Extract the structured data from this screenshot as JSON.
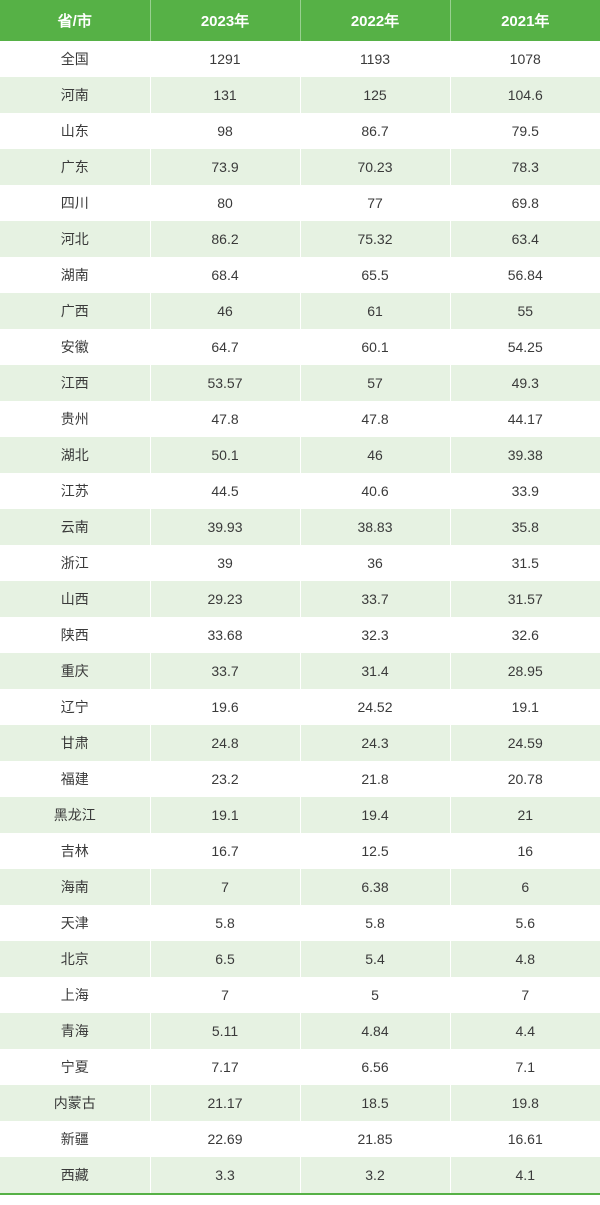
{
  "table": {
    "type": "table",
    "header_bg": "#56b146",
    "header_text_color": "#ffffff",
    "row_odd_bg": "#ffffff",
    "row_even_bg": "#e6f2e2",
    "body_text_color": "#3a3a3a",
    "bottom_border_color": "#56b146",
    "header_fontsize": 15,
    "body_fontsize": 14,
    "column_widths_pct": [
      25,
      25,
      25,
      25
    ],
    "columns": [
      "省/市",
      "2023年",
      "2022年",
      "2021年"
    ],
    "rows": [
      [
        "全国",
        "1291",
        "1193",
        "1078"
      ],
      [
        "河南",
        "131",
        "125",
        "104.6"
      ],
      [
        "山东",
        "98",
        "86.7",
        "79.5"
      ],
      [
        "广东",
        "73.9",
        "70.23",
        "78.3"
      ],
      [
        "四川",
        "80",
        "77",
        "69.8"
      ],
      [
        "河北",
        "86.2",
        "75.32",
        "63.4"
      ],
      [
        "湖南",
        "68.4",
        "65.5",
        "56.84"
      ],
      [
        "广西",
        "46",
        "61",
        "55"
      ],
      [
        "安徽",
        "64.7",
        "60.1",
        "54.25"
      ],
      [
        "江西",
        "53.57",
        "57",
        "49.3"
      ],
      [
        "贵州",
        "47.8",
        "47.8",
        "44.17"
      ],
      [
        "湖北",
        "50.1",
        "46",
        "39.38"
      ],
      [
        "江苏",
        "44.5",
        "40.6",
        "33.9"
      ],
      [
        "云南",
        "39.93",
        "38.83",
        "35.8"
      ],
      [
        "浙江",
        "39",
        "36",
        "31.5"
      ],
      [
        "山西",
        "29.23",
        "33.7",
        "31.57"
      ],
      [
        "陕西",
        "33.68",
        "32.3",
        "32.6"
      ],
      [
        "重庆",
        "33.7",
        "31.4",
        "28.95"
      ],
      [
        "辽宁",
        "19.6",
        "24.52",
        "19.1"
      ],
      [
        "甘肃",
        "24.8",
        "24.3",
        "24.59"
      ],
      [
        "福建",
        "23.2",
        "21.8",
        "20.78"
      ],
      [
        "黑龙江",
        "19.1",
        "19.4",
        "21"
      ],
      [
        "吉林",
        "16.7",
        "12.5",
        "16"
      ],
      [
        "海南",
        "7",
        "6.38",
        "6"
      ],
      [
        "天津",
        "5.8",
        "5.8",
        "5.6"
      ],
      [
        "北京",
        "6.5",
        "5.4",
        "4.8"
      ],
      [
        "上海",
        "7",
        "5",
        "7"
      ],
      [
        "青海",
        "5.11",
        "4.84",
        "4.4"
      ],
      [
        "宁夏",
        "7.17",
        "6.56",
        "7.1"
      ],
      [
        "内蒙古",
        "21.17",
        "18.5",
        "19.8"
      ],
      [
        "新疆",
        "22.69",
        "21.85",
        "16.61"
      ],
      [
        "西藏",
        "3.3",
        "3.2",
        "4.1"
      ]
    ]
  }
}
